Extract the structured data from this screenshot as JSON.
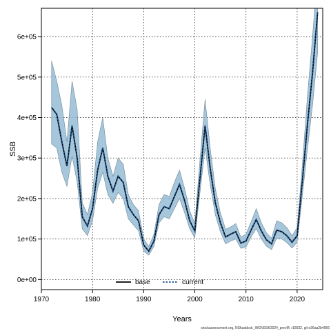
{
  "chart_data": {
    "type": "line",
    "title": "",
    "xlabel": "Years",
    "ylabel": "SSB",
    "xlim": [
      1970,
      2025
    ],
    "ylim": [
      -25000,
      670000
    ],
    "x_ticks": [
      1970,
      1980,
      1990,
      2000,
      2010,
      2020
    ],
    "x_tick_labels": [
      "1970",
      "1980",
      "1990",
      "2000",
      "2010",
      "2020"
    ],
    "y_ticks": [
      0,
      100000,
      200000,
      300000,
      400000,
      500000,
      600000
    ],
    "y_tick_labels": [
      "0e+00",
      "1e+05",
      "2e+05",
      "3e+05",
      "4e+05",
      "5e+05",
      "6e+05"
    ],
    "grid": true,
    "legend_position": "bottom-center",
    "footnote": "stockassessment.org, NShaddock_WGNSSK2024_prevM, r18032, git e36aa2b4966",
    "x": [
      1972,
      1973,
      1974,
      1975,
      1976,
      1977,
      1978,
      1979,
      1980,
      1981,
      1982,
      1983,
      1984,
      1985,
      1986,
      1987,
      1988,
      1989,
      1990,
      1991,
      1992,
      1993,
      1994,
      1995,
      1996,
      1997,
      1998,
      1999,
      2000,
      2001,
      2002,
      2003,
      2004,
      2005,
      2006,
      2007,
      2008,
      2009,
      2010,
      2011,
      2012,
      2013,
      2014,
      2015,
      2016,
      2017,
      2018,
      2019,
      2020,
      2021,
      2022,
      2023,
      2024
    ],
    "series": [
      {
        "name": "base",
        "color": "#000000",
        "style": "solid",
        "values": [
          425000,
          408000,
          340000,
          280000,
          380000,
          300000,
          155000,
          132000,
          175000,
          270000,
          325000,
          255000,
          218000,
          255000,
          240000,
          180000,
          160000,
          145000,
          85000,
          70000,
          95000,
          160000,
          180000,
          175000,
          205000,
          235000,
          195000,
          145000,
          120000,
          250000,
          380000,
          275000,
          190000,
          140000,
          105000,
          112000,
          118000,
          90000,
          95000,
          122000,
          148000,
          120000,
          98000,
          88000,
          122000,
          118000,
          108000,
          92000,
          108000,
          240000,
          380000,
          510000,
          660000
        ]
      },
      {
        "name": "current",
        "color": "#1a4f8a",
        "style": "dashed",
        "band_color": "#8fb8d2",
        "values": [
          425000,
          408000,
          340000,
          280000,
          380000,
          300000,
          155000,
          132000,
          175000,
          270000,
          325000,
          255000,
          218000,
          255000,
          240000,
          180000,
          160000,
          145000,
          85000,
          70000,
          95000,
          160000,
          180000,
          175000,
          205000,
          235000,
          195000,
          145000,
          120000,
          250000,
          380000,
          275000,
          190000,
          140000,
          105000,
          112000,
          118000,
          90000,
          95000,
          122000,
          148000,
          120000,
          98000,
          88000,
          122000,
          118000,
          108000,
          92000,
          108000,
          240000,
          380000,
          510000,
          660000
        ],
        "lower": [
          335000,
          325000,
          265000,
          230000,
          305000,
          240000,
          125000,
          108000,
          145000,
          225000,
          265000,
          210000,
          188000,
          215000,
          200000,
          150000,
          135000,
          120000,
          70000,
          60000,
          82000,
          140000,
          155000,
          150000,
          175000,
          200000,
          165000,
          125000,
          103000,
          215000,
          325000,
          235000,
          160000,
          118000,
          88000,
          95000,
          100000,
          77000,
          80000,
          105000,
          126000,
          100000,
          82000,
          74000,
          102000,
          100000,
          91000,
          78000,
          92000,
          205000,
          320000,
          430000,
          560000
        ],
        "upper": [
          540000,
          490000,
          430000,
          340000,
          490000,
          420000,
          190000,
          160000,
          215000,
          340000,
          400000,
          300000,
          255000,
          300000,
          285000,
          210000,
          185000,
          170000,
          100000,
          82000,
          112000,
          185000,
          210000,
          205000,
          240000,
          270000,
          225000,
          170000,
          138000,
          295000,
          445000,
          325000,
          225000,
          165000,
          124000,
          130000,
          138000,
          105000,
          112000,
          142000,
          175000,
          140000,
          115000,
          102000,
          145000,
          140000,
          128000,
          108000,
          128000,
          280000,
          450000,
          600000,
          760000
        ]
      }
    ]
  }
}
